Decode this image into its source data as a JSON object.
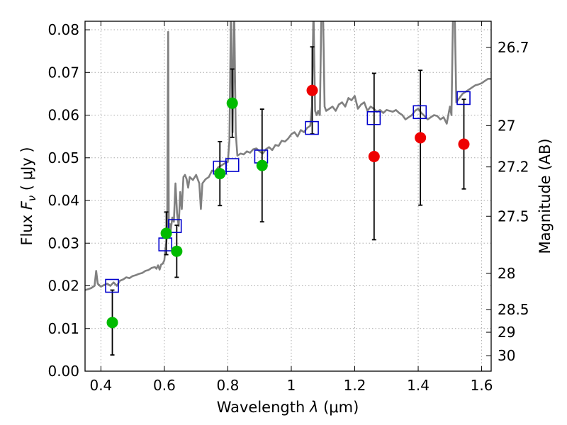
{
  "chart_data": {
    "type": "scatter",
    "title": "",
    "xlabel": "Wavelength  λ (μm)",
    "ylabel": "Flux  F_ν  ( μJy )",
    "ylabel_parts": {
      "a": "Flux  ",
      "b": "F",
      "c": "ν",
      "d": "  ( μJy )"
    },
    "xlabel_parts": {
      "a": "Wavelength  ",
      "b": "λ",
      "c": " (μm)"
    },
    "y2label": "Magnitude (AB)",
    "xlim": [
      0.35,
      1.63
    ],
    "ylim": [
      0.0,
      0.082
    ],
    "grid": true,
    "x_ticks": [
      {
        "v": 0.4,
        "label": "0.4"
      },
      {
        "v": 0.6,
        "label": "0.6"
      },
      {
        "v": 0.8,
        "label": "0.8"
      },
      {
        "v": 1.0,
        "label": "1"
      },
      {
        "v": 1.2,
        "label": "1.2"
      },
      {
        "v": 1.4,
        "label": "1.4"
      },
      {
        "v": 1.6,
        "label": "1.6"
      }
    ],
    "y_ticks": [
      {
        "v": 0.0,
        "label": "0.00"
      },
      {
        "v": 0.01,
        "label": "0.01"
      },
      {
        "v": 0.02,
        "label": "0.02"
      },
      {
        "v": 0.03,
        "label": "0.03"
      },
      {
        "v": 0.04,
        "label": "0.04"
      },
      {
        "v": 0.05,
        "label": "0.05"
      },
      {
        "v": 0.06,
        "label": "0.06"
      },
      {
        "v": 0.07,
        "label": "0.07"
      },
      {
        "v": 0.08,
        "label": "0.08"
      }
    ],
    "mag_ticks": [
      {
        "mag": 26.7,
        "label": "26.7"
      },
      {
        "mag": 27.0,
        "label": "27"
      },
      {
        "mag": 27.2,
        "label": "27.2"
      },
      {
        "mag": 27.5,
        "label": "27.5"
      },
      {
        "mag": 28.0,
        "label": "28"
      },
      {
        "mag": 28.5,
        "label": "28.5"
      },
      {
        "mag": 29.0,
        "label": "29"
      },
      {
        "mag": 30.0,
        "label": "30"
      }
    ],
    "colors": {
      "sed_model": "#808080",
      "model_photometry": "#0000cc",
      "detection": "#00bb00",
      "other": "#ee0000",
      "errorbar": "#000000",
      "grid": "#aaaaaa"
    },
    "sed_model": [
      [
        0.35,
        0.019
      ],
      [
        0.36,
        0.0192
      ],
      [
        0.37,
        0.0195
      ],
      [
        0.38,
        0.02
      ],
      [
        0.385,
        0.0235
      ],
      [
        0.39,
        0.0205
      ],
      [
        0.4,
        0.0198
      ],
      [
        0.41,
        0.0202
      ],
      [
        0.42,
        0.0205
      ],
      [
        0.43,
        0.02
      ],
      [
        0.44,
        0.0208
      ],
      [
        0.45,
        0.02
      ],
      [
        0.46,
        0.0212
      ],
      [
        0.47,
        0.0215
      ],
      [
        0.48,
        0.022
      ],
      [
        0.49,
        0.0218
      ],
      [
        0.5,
        0.0223
      ],
      [
        0.51,
        0.0225
      ],
      [
        0.52,
        0.0228
      ],
      [
        0.53,
        0.023
      ],
      [
        0.54,
        0.0235
      ],
      [
        0.55,
        0.0237
      ],
      [
        0.56,
        0.0242
      ],
      [
        0.57,
        0.0244
      ],
      [
        0.575,
        0.024
      ],
      [
        0.58,
        0.0248
      ],
      [
        0.585,
        0.0238
      ],
      [
        0.59,
        0.025
      ],
      [
        0.595,
        0.0252
      ],
      [
        0.6,
        0.026
      ],
      [
        0.603,
        0.0285
      ],
      [
        0.606,
        0.03
      ],
      [
        0.609,
        0.033
      ],
      [
        0.612,
        0.0795
      ],
      [
        0.614,
        0.033
      ],
      [
        0.617,
        0.0345
      ],
      [
        0.62,
        0.033
      ],
      [
        0.625,
        0.036
      ],
      [
        0.63,
        0.035
      ],
      [
        0.635,
        0.044
      ],
      [
        0.64,
        0.037
      ],
      [
        0.645,
        0.034
      ],
      [
        0.65,
        0.042
      ],
      [
        0.655,
        0.038
      ],
      [
        0.66,
        0.0455
      ],
      [
        0.665,
        0.046
      ],
      [
        0.67,
        0.045
      ],
      [
        0.675,
        0.043
      ],
      [
        0.68,
        0.0455
      ],
      [
        0.69,
        0.0448
      ],
      [
        0.7,
        0.046
      ],
      [
        0.71,
        0.044
      ],
      [
        0.715,
        0.038
      ],
      [
        0.72,
        0.044
      ],
      [
        0.73,
        0.045
      ],
      [
        0.74,
        0.0455
      ],
      [
        0.75,
        0.047
      ],
      [
        0.76,
        0.0468
      ],
      [
        0.77,
        0.0478
      ],
      [
        0.78,
        0.0482
      ],
      [
        0.79,
        0.0487
      ],
      [
        0.8,
        0.049
      ],
      [
        0.805,
        0.054
      ],
      [
        0.81,
        0.085
      ],
      [
        0.815,
        0.056
      ],
      [
        0.82,
        0.085
      ],
      [
        0.825,
        0.056
      ],
      [
        0.83,
        0.0505
      ],
      [
        0.84,
        0.051
      ],
      [
        0.85,
        0.0508
      ],
      [
        0.86,
        0.0515
      ],
      [
        0.87,
        0.0512
      ],
      [
        0.88,
        0.052
      ],
      [
        0.89,
        0.0522
      ],
      [
        0.9,
        0.0515
      ],
      [
        0.91,
        0.051
      ],
      [
        0.92,
        0.052
      ],
      [
        0.93,
        0.0525
      ],
      [
        0.94,
        0.0518
      ],
      [
        0.95,
        0.053
      ],
      [
        0.96,
        0.0528
      ],
      [
        0.97,
        0.054
      ],
      [
        0.98,
        0.0538
      ],
      [
        0.99,
        0.0545
      ],
      [
        1.0,
        0.0555
      ],
      [
        1.01,
        0.056
      ],
      [
        1.02,
        0.055
      ],
      [
        1.03,
        0.0565
      ],
      [
        1.04,
        0.056
      ],
      [
        1.05,
        0.057
      ],
      [
        1.06,
        0.0575
      ],
      [
        1.065,
        0.062
      ],
      [
        1.07,
        0.085
      ],
      [
        1.075,
        0.061
      ],
      [
        1.08,
        0.06
      ],
      [
        1.085,
        0.061
      ],
      [
        1.09,
        0.06
      ],
      [
        1.095,
        0.085
      ],
      [
        1.1,
        0.085
      ],
      [
        1.105,
        0.062
      ],
      [
        1.11,
        0.061
      ],
      [
        1.12,
        0.0615
      ],
      [
        1.13,
        0.062
      ],
      [
        1.14,
        0.061
      ],
      [
        1.15,
        0.0625
      ],
      [
        1.16,
        0.063
      ],
      [
        1.17,
        0.062
      ],
      [
        1.18,
        0.064
      ],
      [
        1.19,
        0.0635
      ],
      [
        1.2,
        0.0645
      ],
      [
        1.21,
        0.0615
      ],
      [
        1.22,
        0.0625
      ],
      [
        1.23,
        0.063
      ],
      [
        1.24,
        0.061
      ],
      [
        1.25,
        0.062
      ],
      [
        1.26,
        0.0615
      ],
      [
        1.27,
        0.0608
      ],
      [
        1.28,
        0.0612
      ],
      [
        1.29,
        0.0605
      ],
      [
        1.3,
        0.0612
      ],
      [
        1.31,
        0.061
      ],
      [
        1.32,
        0.0608
      ],
      [
        1.33,
        0.0612
      ],
      [
        1.34,
        0.0605
      ],
      [
        1.35,
        0.06
      ],
      [
        1.36,
        0.059
      ],
      [
        1.37,
        0.0595
      ],
      [
        1.38,
        0.06
      ],
      [
        1.39,
        0.061
      ],
      [
        1.4,
        0.0615
      ],
      [
        1.41,
        0.0605
      ],
      [
        1.42,
        0.0598
      ],
      [
        1.43,
        0.059
      ],
      [
        1.44,
        0.0595
      ],
      [
        1.45,
        0.06
      ],
      [
        1.46,
        0.0598
      ],
      [
        1.47,
        0.059
      ],
      [
        1.48,
        0.0595
      ],
      [
        1.49,
        0.058
      ],
      [
        1.5,
        0.062
      ],
      [
        1.505,
        0.06
      ],
      [
        1.51,
        0.085
      ],
      [
        1.515,
        0.085
      ],
      [
        1.52,
        0.063
      ],
      [
        1.53,
        0.064
      ],
      [
        1.54,
        0.065
      ],
      [
        1.55,
        0.0655
      ],
      [
        1.56,
        0.066
      ],
      [
        1.57,
        0.0665
      ],
      [
        1.58,
        0.067
      ],
      [
        1.59,
        0.0672
      ],
      [
        1.6,
        0.0675
      ],
      [
        1.61,
        0.068
      ],
      [
        1.62,
        0.0685
      ],
      [
        1.63,
        0.0685
      ]
    ],
    "model_photometry": [
      {
        "x": 0.435,
        "y": 0.02
      },
      {
        "x": 0.603,
        "y": 0.0297
      },
      {
        "x": 0.633,
        "y": 0.034
      },
      {
        "x": 0.775,
        "y": 0.0477
      },
      {
        "x": 0.814,
        "y": 0.0483
      },
      {
        "x": 0.905,
        "y": 0.0503
      },
      {
        "x": 1.065,
        "y": 0.057
      },
      {
        "x": 1.26,
        "y": 0.0593
      },
      {
        "x": 1.405,
        "y": 0.0607
      },
      {
        "x": 1.543,
        "y": 0.064
      }
    ],
    "detections": [
      {
        "x": 0.436,
        "y": 0.0114,
        "err_lo": 0.0076,
        "err_hi": 0.0076,
        "color": "green"
      },
      {
        "x": 0.606,
        "y": 0.0323,
        "err_lo": 0.005,
        "err_hi": 0.005,
        "color": "green"
      },
      {
        "x": 0.639,
        "y": 0.0281,
        "err_lo": 0.0061,
        "err_hi": 0.0061,
        "color": "green"
      },
      {
        "x": 0.775,
        "y": 0.0463,
        "err_lo": 0.0075,
        "err_hi": 0.0075,
        "color": "green"
      },
      {
        "x": 0.814,
        "y": 0.0628,
        "err_lo": 0.008,
        "err_hi": 0.008,
        "color": "green"
      },
      {
        "x": 0.908,
        "y": 0.0482,
        "err_lo": 0.0132,
        "err_hi": 0.0132,
        "color": "green"
      },
      {
        "x": 1.066,
        "y": 0.0658,
        "err_lo": 0.0102,
        "err_hi": 0.0102,
        "color": "red"
      },
      {
        "x": 1.261,
        "y": 0.0503,
        "err_lo": 0.0195,
        "err_hi": 0.0195,
        "color": "red"
      },
      {
        "x": 1.407,
        "y": 0.0547,
        "err_lo": 0.0158,
        "err_hi": 0.0158,
        "color": "red"
      },
      {
        "x": 1.544,
        "y": 0.0532,
        "err_lo": 0.0105,
        "err_hi": 0.0105,
        "color": "red"
      }
    ]
  }
}
